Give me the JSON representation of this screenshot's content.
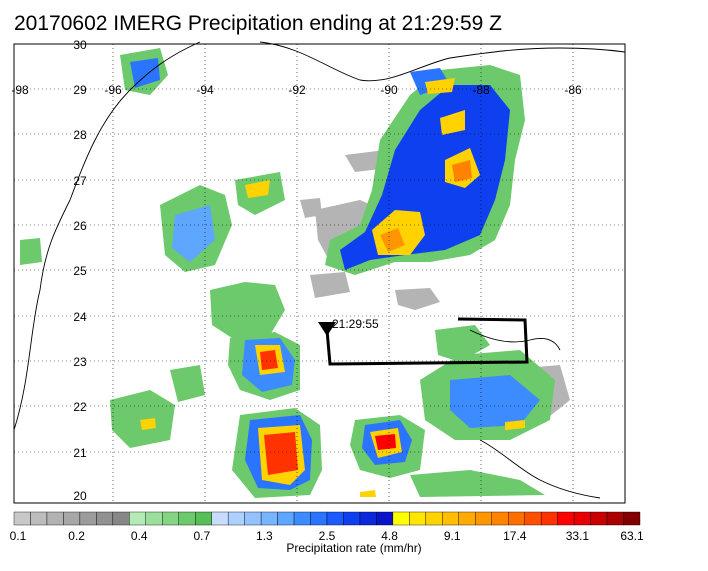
{
  "title": "20170602 IMERG Precipitation ending at 21:29:59 Z",
  "map": {
    "lon_labels": [
      "-98",
      "-96",
      "-94",
      "-92",
      "-90",
      "-88",
      "-86"
    ],
    "lat_labels": [
      "30",
      "29",
      "28",
      "27",
      "26",
      "25",
      "24",
      "23",
      "22",
      "21",
      "20"
    ],
    "track_label": "21:29:55"
  },
  "colorbar": {
    "label": "Precipitation rate (mm/hr)",
    "ticks": [
      "0.1",
      "0.2",
      "0.4",
      "0.7",
      "1.3",
      "2.5",
      "4.8",
      "9.1",
      "17.4",
      "33.1",
      "63.1"
    ],
    "colors": [
      "#c8c8c8",
      "#bdbdbd",
      "#b2b2b2",
      "#a7a7a7",
      "#9c9c9c",
      "#919191",
      "#878787",
      "#b4eab4",
      "#9cdf9c",
      "#84d484",
      "#6cc96c",
      "#58bf58",
      "#c8dcff",
      "#aed0ff",
      "#94c2ff",
      "#78b4ff",
      "#5ea6ff",
      "#3c8cff",
      "#2a74ff",
      "#1a5aff",
      "#0e40f0",
      "#0a28dc",
      "#0a14c8",
      "#ffff00",
      "#ffe600",
      "#ffd200",
      "#ffbe00",
      "#ffaa00",
      "#ff9600",
      "#ff8200",
      "#ff6e00",
      "#ff5000",
      "#ff3200",
      "#ff0000",
      "#e60000",
      "#c80000",
      "#aa0000",
      "#820000"
    ]
  }
}
